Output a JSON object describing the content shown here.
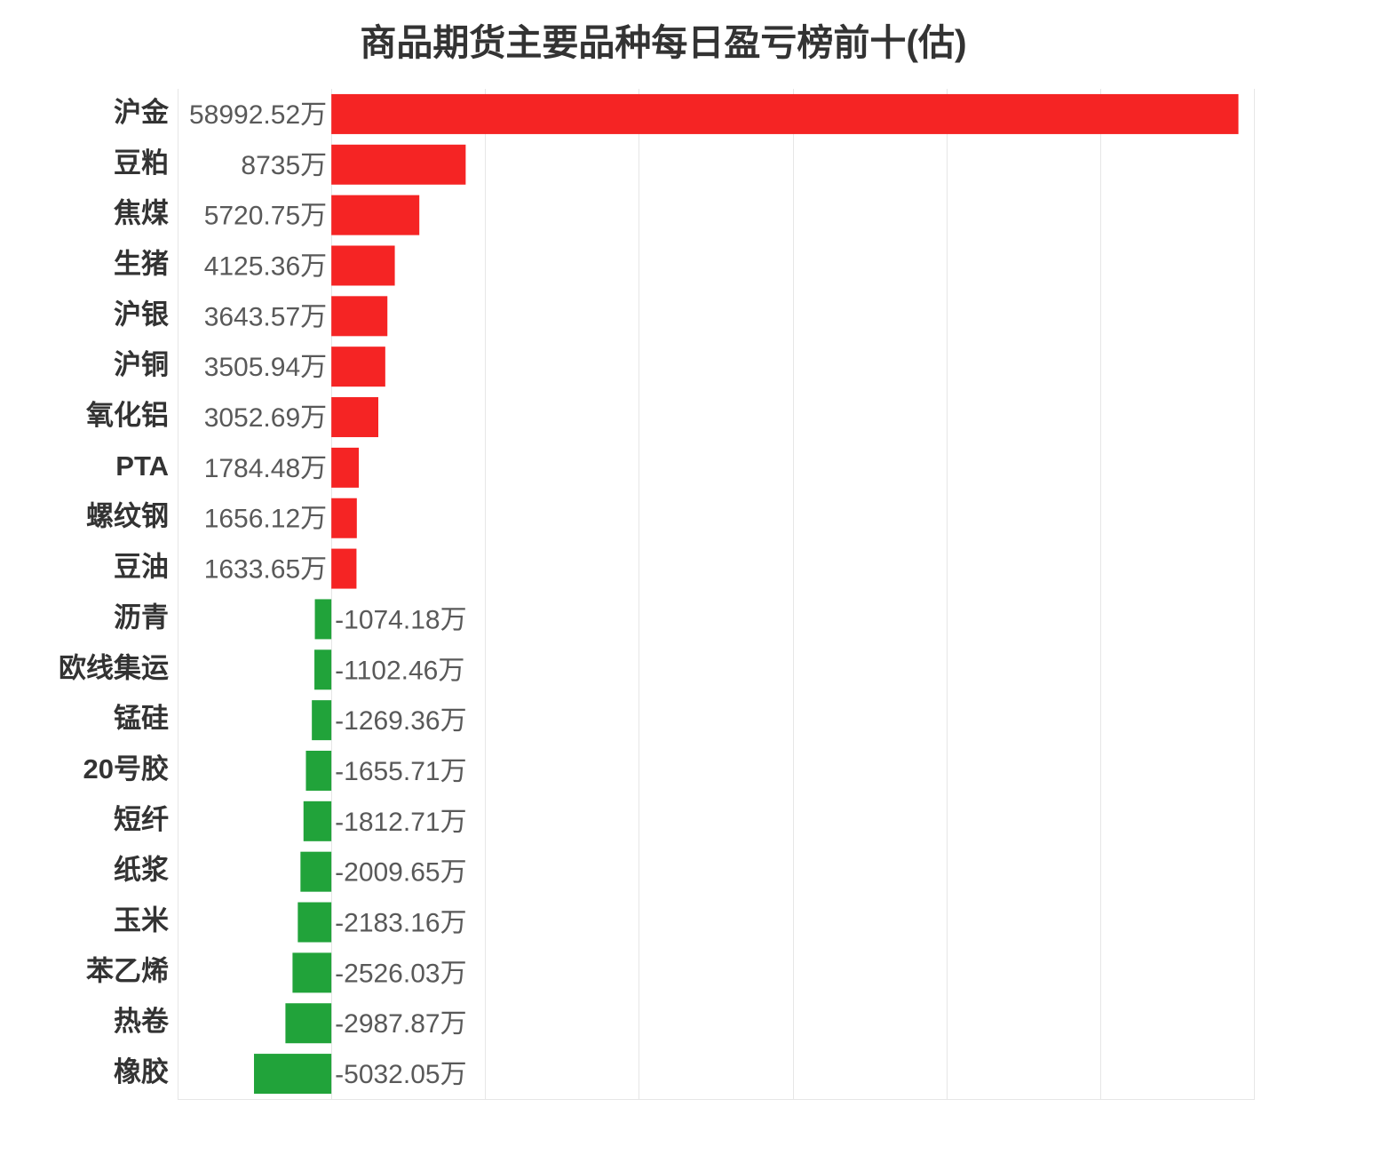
{
  "chart_data": {
    "type": "bar",
    "orientation": "horizontal",
    "title": "商品期货主要品种每日盈亏榜前十(估)",
    "xlabel": "",
    "ylabel": "",
    "categories": [
      "沪金",
      "豆粕",
      "焦煤",
      "生猪",
      "沪银",
      "沪铜",
      "氧化铝",
      "PTA",
      "螺纹钢",
      "豆油",
      "沥青",
      "欧线集运",
      "锰硅",
      "20号胶",
      "短纤",
      "纸浆",
      "玉米",
      "苯乙烯",
      "热卷",
      "橡胶"
    ],
    "values": [
      58992.52,
      8735,
      5720.75,
      4125.36,
      3643.57,
      3505.94,
      3052.69,
      1784.48,
      1656.12,
      1633.65,
      -1074.18,
      -1102.46,
      -1269.36,
      -1655.71,
      -1812.71,
      -2009.65,
      -2183.16,
      -2526.03,
      -2987.87,
      -5032.05
    ],
    "data_labels": [
      "58992.52万",
      "8735万",
      "5720.75万",
      "4125.36万",
      "3643.57万",
      "3505.94万",
      "3052.69万",
      "1784.48万",
      "1656.12万",
      "1633.65万",
      "-1074.18万",
      "-1102.46万",
      "-1269.36万",
      "-1655.71万",
      "-1812.71万",
      "-2009.65万",
      "-2183.16万",
      "-2526.03万",
      "-2987.87万",
      "-5032.05万"
    ],
    "xlim": [
      -10000,
      60000
    ],
    "x_grid_step": 10000,
    "grid": "vertical",
    "legend": "none",
    "colors": {
      "positive": "#f52424",
      "negative": "#21a33a",
      "grid": "#e6e6e6"
    }
  }
}
